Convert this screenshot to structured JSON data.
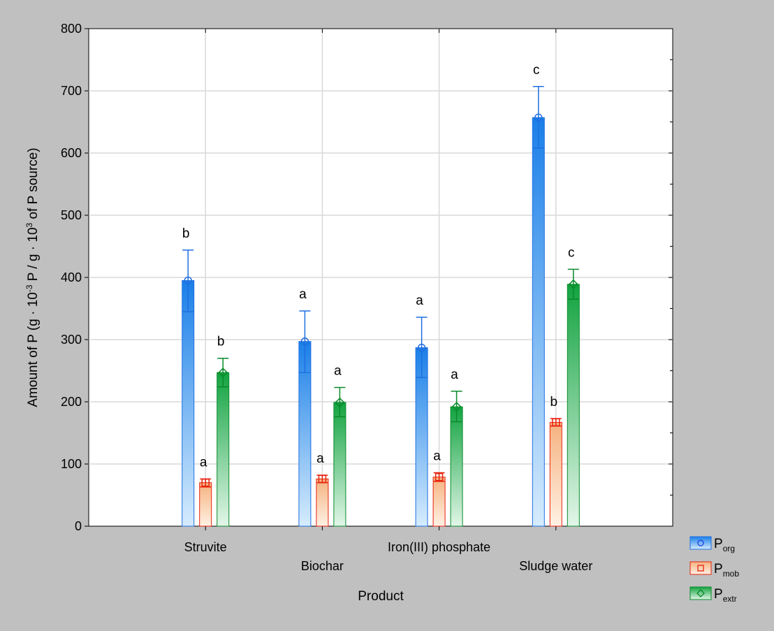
{
  "chart_data": {
    "type": "bar",
    "xlabel": "Product",
    "ylabel_parts": [
      "Amount of P (g · 10",
      "-3",
      " P / g · 10",
      "3",
      " of P source)"
    ],
    "ylim": [
      0,
      800
    ],
    "yticks": [
      0,
      100,
      200,
      300,
      400,
      500,
      600,
      700,
      800
    ],
    "grid": true,
    "legend_position": "bottom-right outside",
    "categories": [
      "Struvite",
      "Biochar",
      "Iron(III) phosphate",
      "Sludge water"
    ],
    "series": [
      {
        "name_main": "P",
        "name_sub": "org",
        "color": "#1f6fe0",
        "fill_dark": "#1a7fe8",
        "fill_light": "#d6ecfd",
        "marker": "circle",
        "values": [
          395,
          297,
          287,
          657
        ],
        "err_low": [
          345,
          247,
          239,
          608
        ],
        "err_high": [
          444,
          346,
          336,
          707
        ],
        "letters": [
          "b",
          "a",
          "a",
          "c"
        ]
      },
      {
        "name_main": "P",
        "name_sub": "mob",
        "color": "#e8220e",
        "fill_dark": "#f5b27f",
        "fill_light": "#fff1e4",
        "marker": "square",
        "values": [
          70,
          76,
          79,
          167
        ],
        "err_low": [
          63,
          70,
          72,
          161
        ],
        "err_high": [
          76,
          82,
          86,
          173
        ],
        "letters": [
          "a",
          "a",
          "a",
          "b"
        ]
      },
      {
        "name_main": "P",
        "name_sub": "extr",
        "color": "#0a8a2a",
        "fill_dark": "#12a340",
        "fill_light": "#e2f6e8",
        "marker": "diamond",
        "values": [
          247,
          199,
          192,
          389
        ],
        "err_low": [
          224,
          176,
          168,
          365
        ],
        "err_high": [
          270,
          223,
          217,
          413
        ],
        "letters": [
          "b",
          "a",
          "a",
          "c"
        ]
      }
    ]
  }
}
